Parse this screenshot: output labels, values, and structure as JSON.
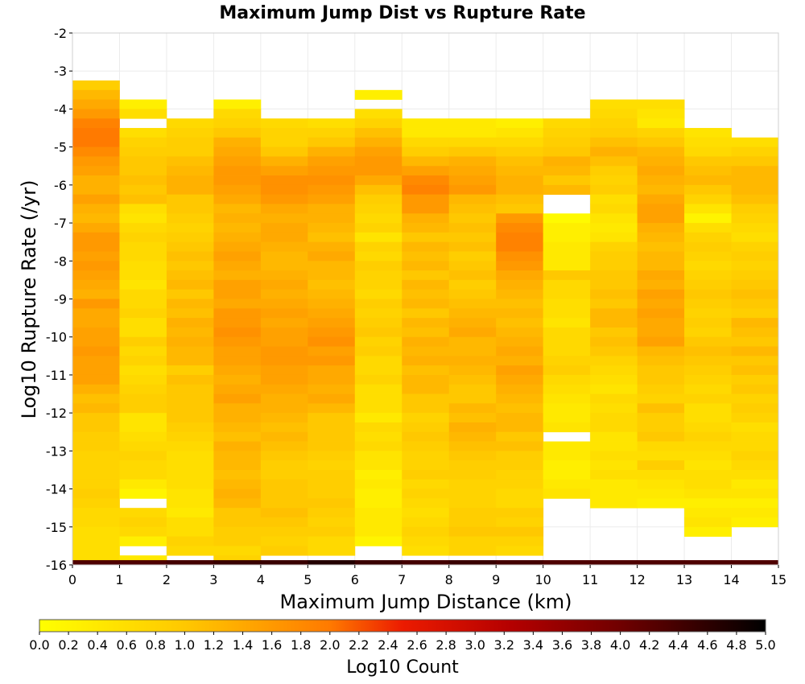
{
  "chart_data": {
    "type": "heatmap",
    "title": "Maximum Jump Dist vs Rupture Rate",
    "xlabel": "Maximum Jump Distance (km)",
    "ylabel": "Log10 Rupture Rate (/yr)",
    "colorbar_label": "Log10 Count",
    "xlim": [
      0,
      15
    ],
    "ylim": [
      -16,
      -2
    ],
    "x_ticks": [
      "0",
      "1",
      "2",
      "3",
      "4",
      "5",
      "6",
      "7",
      "8",
      "9",
      "10",
      "11",
      "12",
      "13",
      "14",
      "15"
    ],
    "y_ticks": [
      "-2",
      "-3",
      "-4",
      "-5",
      "-6",
      "-7",
      "-8",
      "-9",
      "-10",
      "-11",
      "-12",
      "-13",
      "-14",
      "-15",
      "-16"
    ],
    "colorbar_range": [
      0,
      5
    ],
    "colorbar_ticks": [
      "0.0",
      "0.2",
      "0.4",
      "0.6",
      "0.8",
      "1.0",
      "1.2",
      "1.4",
      "1.6",
      "1.8",
      "2.0",
      "2.2",
      "2.4",
      "2.6",
      "2.8",
      "3.0",
      "3.2",
      "3.4",
      "3.6",
      "3.8",
      "4.0",
      "4.2",
      "4.4",
      "4.6",
      "4.8",
      "5.0"
    ],
    "x_bin_width": 1,
    "y_bin_width": 0.25,
    "columns": [
      {
        "x_start": 0,
        "y_top": -3.25,
        "values": [
          0.9,
          1.2,
          1.4,
          1.6,
          1.9,
          2.0,
          2.0,
          1.8,
          1.6,
          1.5,
          1.3,
          1.3,
          1.5,
          1.3,
          1.2,
          1.4,
          1.6,
          1.6,
          1.5,
          1.6,
          1.5,
          1.4,
          1.3,
          1.6,
          1.4,
          1.4,
          1.5,
          1.5,
          1.6,
          1.5,
          1.5,
          1.5,
          1.3,
          1.1,
          1.2,
          1.0,
          1.0,
          0.9,
          0.9,
          0.8,
          0.8,
          0.8,
          0.8,
          0.9,
          0.8,
          0.7,
          0.7,
          0.6,
          0.6,
          0.6,
          0.6
        ]
      },
      {
        "x_start": 1,
        "y_top": -3.75,
        "values": [
          0.3,
          0.6,
          null,
          0.6,
          0.8,
          0.9,
          1.0,
          1.0,
          1.1,
          1.0,
          1.1,
          0.6,
          0.5,
          0.7,
          0.8,
          0.7,
          0.7,
          0.6,
          0.6,
          0.5,
          0.7,
          0.7,
          0.8,
          0.6,
          0.6,
          0.9,
          0.7,
          0.8,
          0.6,
          0.7,
          0.8,
          0.9,
          0.9,
          0.5,
          0.5,
          0.6,
          0.7,
          0.8,
          0.7,
          0.7,
          0.4,
          0.2,
          null,
          0.7,
          0.8,
          0.7,
          0.3,
          null,
          0.4,
          null,
          null
        ]
      },
      {
        "x_start": 2,
        "y_top": -4.25,
        "values": [
          0.7,
          0.8,
          0.9,
          0.9,
          1.1,
          1.2,
          1.3,
          1.3,
          1.0,
          1.0,
          0.9,
          0.8,
          0.9,
          1.0,
          1.1,
          1.0,
          1.1,
          1.2,
          1.0,
          1.2,
          1.1,
          1.3,
          1.2,
          1.3,
          1.2,
          1.2,
          0.9,
          1.1,
          1.0,
          1.0,
          1.0,
          1.0,
          0.9,
          0.8,
          0.7,
          0.6,
          0.6,
          0.6,
          0.6,
          0.5,
          0.5,
          0.4,
          0.6,
          0.6,
          0.8,
          0.7
        ]
      },
      {
        "x_start": 3,
        "y_top": -3.75,
        "values": [
          0.3,
          0.7,
          0.8,
          1.0,
          1.3,
          1.4,
          1.5,
          1.6,
          1.6,
          1.5,
          1.4,
          1.2,
          1.3,
          1.2,
          1.3,
          1.4,
          1.5,
          1.4,
          1.3,
          1.5,
          1.5,
          1.4,
          1.6,
          1.6,
          1.7,
          1.6,
          1.5,
          1.5,
          1.4,
          1.3,
          1.4,
          1.5,
          1.3,
          1.3,
          1.2,
          1.1,
          1.3,
          1.2,
          1.2,
          1.1,
          1.2,
          1.3,
          1.2,
          1.0,
          1.0,
          0.9,
          0.9,
          0.7,
          0.8
        ]
      },
      {
        "x_start": 4,
        "y_top": -4.25,
        "values": [
          0.7,
          0.8,
          0.8,
          1.0,
          1.3,
          1.5,
          1.7,
          1.7,
          1.6,
          1.4,
          1.3,
          1.4,
          1.4,
          1.3,
          1.2,
          1.2,
          1.3,
          1.4,
          1.3,
          1.4,
          1.5,
          1.4,
          1.5,
          1.5,
          1.6,
          1.6,
          1.5,
          1.5,
          1.4,
          1.3,
          1.3,
          1.2,
          1.1,
          1.2,
          1.1,
          1.0,
          0.9,
          0.9,
          1.0,
          1.0,
          1.0,
          1.1,
          1.0,
          0.9,
          0.8,
          0.9
        ]
      },
      {
        "x_start": 5,
        "y_top": -4.25,
        "values": [
          0.6,
          0.8,
          1.0,
          1.3,
          1.5,
          1.6,
          1.7,
          1.6,
          1.5,
          1.3,
          1.3,
          1.2,
          1.1,
          1.3,
          1.4,
          1.2,
          1.2,
          1.1,
          1.2,
          1.3,
          1.4,
          1.5,
          1.6,
          1.7,
          1.5,
          1.6,
          1.4,
          1.4,
          1.3,
          1.4,
          1.2,
          1.0,
          1.0,
          1.0,
          1.0,
          0.9,
          0.8,
          0.9,
          0.9,
          0.9,
          1.0,
          0.9,
          0.8,
          0.9,
          0.7,
          0.7
        ]
      },
      {
        "x_start": 6,
        "y_top": -3.5,
        "values": [
          0.3,
          null,
          0.6,
          0.8,
          1.1,
          1.3,
          1.5,
          1.6,
          1.6,
          1.4,
          1.1,
          0.9,
          0.8,
          0.7,
          0.8,
          0.5,
          0.8,
          0.7,
          0.9,
          0.8,
          0.8,
          0.7,
          0.9,
          0.8,
          0.9,
          1.0,
          0.8,
          0.9,
          0.7,
          0.7,
          0.8,
          0.6,
          0.6,
          0.6,
          0.4,
          0.7,
          0.6,
          0.7,
          0.5,
          0.5,
          0.3,
          0.4,
          0.3,
          0.3,
          0.4,
          0.4,
          0.4,
          0.2
        ]
      },
      {
        "x_start": 7,
        "y_top": -4.25,
        "values": [
          0.4,
          0.4,
          0.7,
          0.9,
          1.2,
          1.5,
          1.8,
          1.9,
          1.6,
          1.6,
          1.3,
          1.2,
          1.0,
          1.2,
          1.1,
          1.2,
          1.0,
          1.2,
          1.1,
          1.2,
          1.0,
          1.2,
          1.1,
          1.3,
          1.2,
          1.3,
          1.1,
          1.2,
          1.2,
          1.0,
          1.0,
          0.8,
          0.9,
          1.0,
          0.9,
          0.8,
          0.8,
          0.9,
          0.7,
          0.8,
          0.7,
          0.6,
          0.7,
          0.8,
          0.7,
          0.6
        ]
      },
      {
        "x_start": 8,
        "y_top": -4.25,
        "values": [
          0.4,
          0.4,
          0.7,
          1.0,
          1.3,
          1.4,
          1.5,
          1.6,
          1.2,
          1.1,
          1.0,
          1.1,
          1.0,
          1.1,
          0.9,
          1.0,
          1.1,
          0.9,
          1.0,
          1.1,
          1.2,
          1.3,
          1.4,
          1.2,
          1.2,
          1.3,
          1.2,
          1.1,
          1.0,
          1.0,
          1.2,
          1.1,
          1.3,
          1.2,
          1.1,
          1.0,
          0.9,
          0.9,
          0.8,
          0.8,
          0.8,
          0.9,
          0.9,
          1.0,
          0.8,
          0.8
        ]
      },
      {
        "x_start": 9,
        "y_top": -4.25,
        "values": [
          0.3,
          0.5,
          0.7,
          0.9,
          1.1,
          1.2,
          1.3,
          1.3,
          1.1,
          1.0,
          1.6,
          1.8,
          1.9,
          1.9,
          1.7,
          1.6,
          1.4,
          1.3,
          1.2,
          1.1,
          1.2,
          1.1,
          1.2,
          1.3,
          1.4,
          1.3,
          1.5,
          1.4,
          1.3,
          1.2,
          1.1,
          1.2,
          1.2,
          1.0,
          1.1,
          0.9,
          0.9,
          0.8,
          0.8,
          0.7,
          0.7,
          0.9,
          0.8,
          1.0,
          0.8,
          0.7
        ]
      },
      {
        "x_start": 10,
        "y_top": -4.25,
        "values": [
          0.7,
          0.8,
          0.9,
          1.0,
          1.3,
          1.2,
          1.0,
          1.2,
          null,
          null,
          0.1,
          0.3,
          0.3,
          0.4,
          0.4,
          0.4,
          1.0,
          0.7,
          0.7,
          0.6,
          0.6,
          0.5,
          0.7,
          0.7,
          0.7,
          0.8,
          0.9,
          0.7,
          0.6,
          0.5,
          0.4,
          0.4,
          0.5,
          null,
          0.4,
          0.4,
          0.3,
          0.3,
          0.4,
          0.5,
          null,
          null
        ]
      },
      {
        "x_start": 11,
        "y_top": -3.75,
        "values": [
          0.6,
          0.7,
          0.8,
          0.9,
          1.1,
          1.3,
          1.1,
          0.9,
          0.8,
          0.9,
          0.6,
          0.7,
          0.5,
          0.4,
          0.5,
          0.8,
          0.9,
          0.9,
          1.0,
          1.0,
          1.1,
          1.0,
          1.2,
          1.2,
          1.0,
          1.1,
          1.0,
          0.8,
          0.7,
          0.6,
          0.5,
          0.7,
          0.6,
          0.7,
          0.7,
          0.5,
          0.5,
          0.6,
          0.5,
          0.6,
          0.4,
          0.4,
          0.4
        ]
      },
      {
        "x_start": 12,
        "y_top": -3.75,
        "values": [
          0.6,
          0.5,
          0.4,
          0.8,
          1.0,
          1.2,
          1.3,
          1.4,
          1.3,
          1.2,
          1.4,
          1.5,
          1.5,
          1.3,
          1.2,
          1.1,
          1.2,
          1.2,
          1.4,
          1.3,
          1.5,
          1.4,
          1.5,
          1.4,
          1.4,
          1.5,
          1.2,
          1.1,
          1.0,
          1.0,
          0.9,
          0.8,
          1.1,
          0.9,
          0.9,
          1.0,
          0.7,
          0.6,
          0.9,
          0.6,
          0.5,
          0.4,
          0.3
        ]
      },
      {
        "x_start": 13,
        "y_top": -4.5,
        "values": [
          0.5,
          0.6,
          0.7,
          1.0,
          1.1,
          1.2,
          1.0,
          0.8,
          0.5,
          0.2,
          0.6,
          0.8,
          0.9,
          0.8,
          0.7,
          0.8,
          0.9,
          1.0,
          0.9,
          0.8,
          0.9,
          0.8,
          1.0,
          1.1,
          1.0,
          0.9,
          0.8,
          0.7,
          0.8,
          0.6,
          0.6,
          0.7,
          0.8,
          0.7,
          0.6,
          0.5,
          0.6,
          0.6,
          0.5,
          0.3,
          0.4,
          0.5,
          0.3
        ]
      },
      {
        "x_start": 14,
        "y_top": -4.75,
        "values": [
          0.6,
          0.8,
          1.0,
          1.2,
          1.2,
          1.2,
          1.1,
          0.9,
          0.8,
          0.7,
          0.6,
          0.8,
          0.9,
          0.8,
          0.9,
          1.0,
          1.1,
          1.0,
          0.9,
          1.2,
          1.1,
          1.0,
          1.2,
          1.0,
          1.1,
          0.9,
          1.0,
          0.8,
          0.9,
          0.8,
          0.6,
          0.7,
          0.7,
          0.8,
          0.7,
          0.6,
          0.4,
          0.5,
          0.3,
          0.4,
          0.3,
          null,
          null
        ]
      }
    ],
    "bottom_row": {
      "y_start": -16,
      "y_end": -15.875,
      "values": [
        4.3,
        4.3,
        4.4,
        4.5,
        4.5,
        4.7,
        4.5,
        4.4,
        4.5,
        4.4,
        4.3,
        4.3,
        4.3,
        4.3,
        4.3
      ]
    },
    "grid": true
  }
}
